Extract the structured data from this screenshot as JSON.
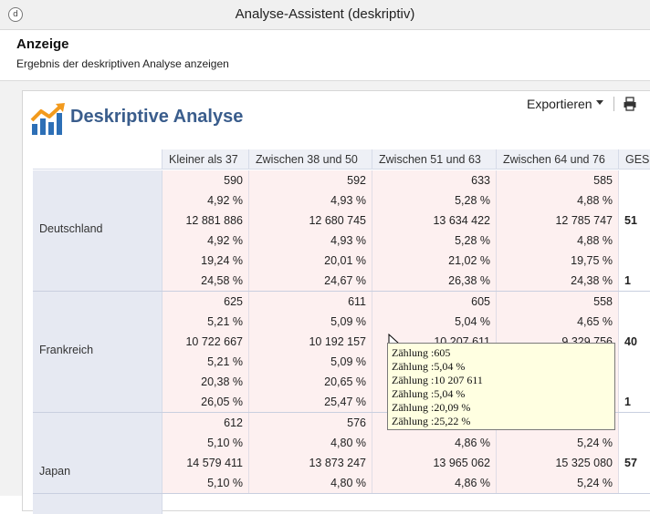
{
  "window": {
    "title": "Analyse-Assistent (deskriptiv)"
  },
  "header": {
    "title": "Anzeige",
    "subtitle": "Ergebnis der deskriptiven Analyse anzeigen"
  },
  "toolbar": {
    "export_label": "Exportieren"
  },
  "report": {
    "title": "Deskriptive Analyse"
  },
  "table": {
    "columns": [
      "Kleiner als 37",
      "Zwischen 38 und 50",
      "Zwischen 51 und 63",
      "Zwischen 64 und 76",
      "GES"
    ],
    "groups": [
      {
        "label": "Deutschland",
        "rows": [
          [
            "590",
            "592",
            "633",
            "585",
            ""
          ],
          [
            "4,92 %",
            "4,93 %",
            "5,28 %",
            "4,88 %",
            ""
          ],
          [
            "12 881 886",
            "12 680 745",
            "13 634 422",
            "12 785 747",
            "51"
          ],
          [
            "4,92 %",
            "4,93 %",
            "5,28 %",
            "4,88 %",
            ""
          ],
          [
            "19,24 %",
            "20,01 %",
            "21,02 %",
            "19,75 %",
            ""
          ],
          [
            "24,58 %",
            "24,67 %",
            "26,38 %",
            "24,38 %",
            "1"
          ]
        ]
      },
      {
        "label": "Frankreich",
        "rows": [
          [
            "625",
            "611",
            "605",
            "558",
            ""
          ],
          [
            "5,21 %",
            "5,09 %",
            "5,04 %",
            "4,65 %",
            ""
          ],
          [
            "10 722 667",
            "10 192 157",
            "10 207 611",
            "9 329 756",
            "40"
          ],
          [
            "5,21 %",
            "5,09 %",
            "",
            "",
            ""
          ],
          [
            "20,38 %",
            "20,65 %",
            "",
            "",
            ""
          ],
          [
            "26,05 %",
            "25,47 %",
            "",
            "",
            "1"
          ]
        ]
      },
      {
        "label": "Japan",
        "rows": [
          [
            "612",
            "576",
            "",
            "",
            ""
          ],
          [
            "5,10 %",
            "4,80 %",
            "4,86 %",
            "5,24 %",
            ""
          ],
          [
            "14 579 411",
            "13 873 247",
            "13 965 062",
            "15 325 080",
            "57"
          ],
          [
            "5,10 %",
            "4,80 %",
            "4,86 %",
            "5,24 %",
            ""
          ]
        ]
      }
    ]
  },
  "tooltip": {
    "lines": [
      "Zählung :605",
      "Zählung :5,04 %",
      "Zählung :10 207 611",
      "Zählung :5,04 %",
      "Zählung :20,09 %",
      "Zählung :25,22 %"
    ]
  },
  "icons": {
    "export_caret": "chevron-down-icon",
    "print": "printer-icon",
    "logo": "chart-trend-logo",
    "cursor": "mouse-pointer-icon"
  }
}
